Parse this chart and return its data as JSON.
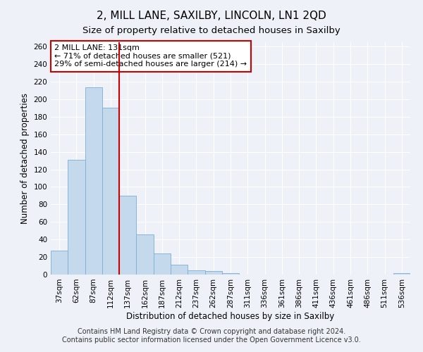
{
  "title": "2, MILL LANE, SAXILBY, LINCOLN, LN1 2QD",
  "subtitle": "Size of property relative to detached houses in Saxilby",
  "xlabel": "Distribution of detached houses by size in Saxilby",
  "ylabel": "Number of detached properties",
  "categories": [
    "37sqm",
    "62sqm",
    "87sqm",
    "112sqm",
    "137sqm",
    "162sqm",
    "187sqm",
    "212sqm",
    "237sqm",
    "262sqm",
    "287sqm",
    "311sqm",
    "336sqm",
    "361sqm",
    "386sqm",
    "411sqm",
    "436sqm",
    "461sqm",
    "486sqm",
    "511sqm",
    "536sqm"
  ],
  "values": [
    27,
    131,
    214,
    190,
    90,
    46,
    24,
    11,
    5,
    4,
    2,
    0,
    0,
    0,
    0,
    0,
    0,
    0,
    0,
    0,
    2
  ],
  "bar_color": "#c5d9ed",
  "bar_edge_color": "#7aaed6",
  "vline_x": 3.5,
  "vline_color": "#cc0000",
  "annotation_text": "2 MILL LANE: 131sqm\n← 71% of detached houses are smaller (521)\n29% of semi-detached houses are larger (214) →",
  "annotation_box_color": "white",
  "annotation_box_edge_color": "#cc0000",
  "ylim": [
    0,
    265
  ],
  "yticks": [
    0,
    20,
    40,
    60,
    80,
    100,
    120,
    140,
    160,
    180,
    200,
    220,
    240,
    260
  ],
  "footer_line1": "Contains HM Land Registry data © Crown copyright and database right 2024.",
  "footer_line2": "Contains public sector information licensed under the Open Government Licence v3.0.",
  "bg_color": "#eef2f8",
  "grid_color": "#ffffff",
  "title_fontsize": 11,
  "subtitle_fontsize": 9.5,
  "label_fontsize": 8.5,
  "tick_fontsize": 7.5,
  "annotation_fontsize": 8,
  "footer_fontsize": 7
}
